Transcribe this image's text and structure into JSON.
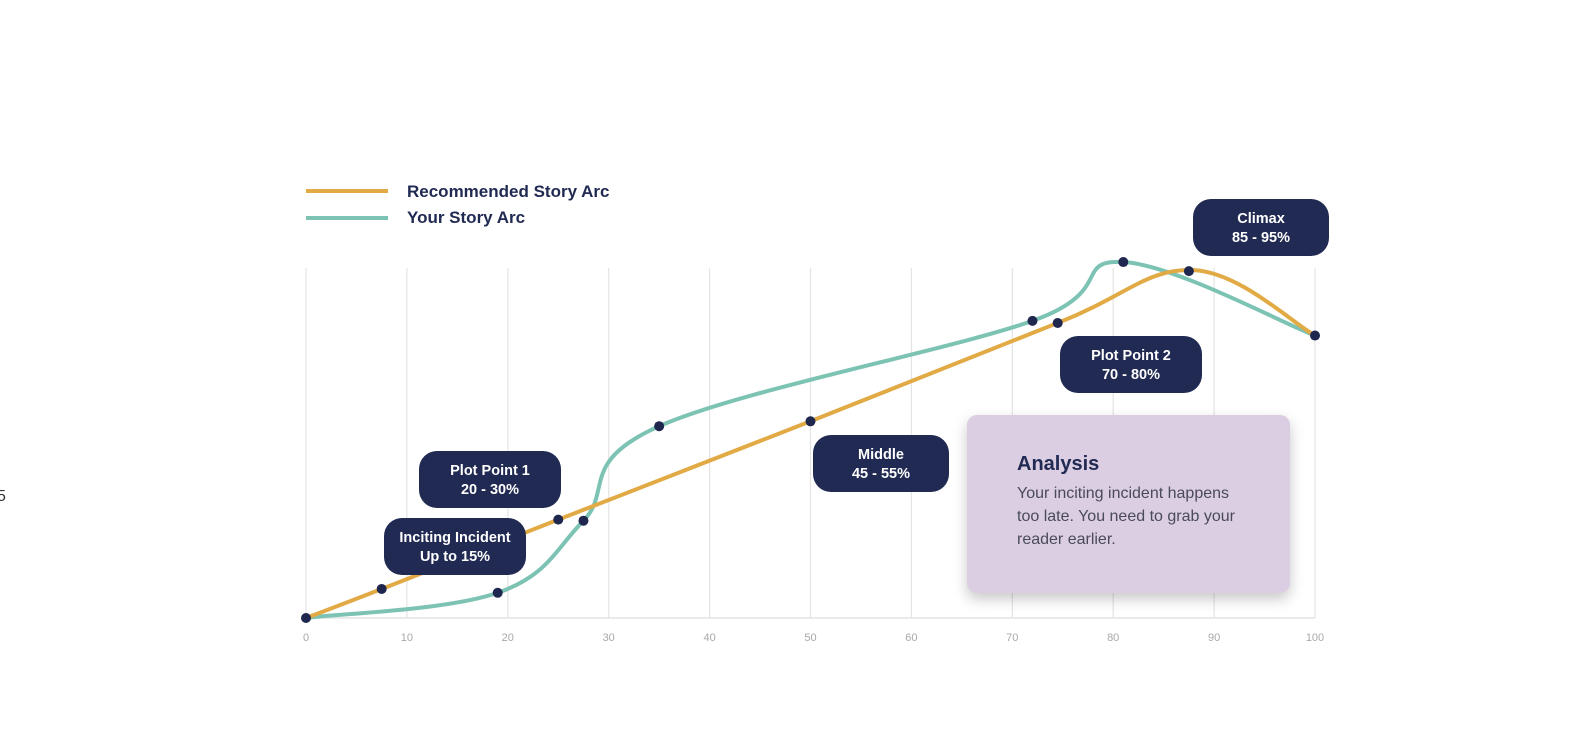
{
  "colors": {
    "recommended": "#e1aa45",
    "yours": "#7cc3b3",
    "marker": "#1f274f",
    "label_bg": "#212a52",
    "grid": "#e4e4e4",
    "tick_text": "#a8a8a8",
    "analysis_bg": "#dbcee3"
  },
  "legend": {
    "recommended_label": "Recommended Story Arc",
    "yours_label": "Your Story Arc"
  },
  "analysis": {
    "title": "Analysis",
    "body": "Your inciting incident happens too late. You need to grab your reader earlier."
  },
  "edge_glyph": "5",
  "chart_data": {
    "type": "line",
    "xlim": [
      0,
      100
    ],
    "ylim": [
      0,
      100
    ],
    "x_ticks": [
      "0",
      "10",
      "20",
      "30",
      "40",
      "50",
      "60",
      "70",
      "80",
      "90",
      "100"
    ],
    "grid": "vertical",
    "legend_position": "top-left",
    "series": [
      {
        "name": "Recommended Story Arc",
        "color": "#e1aa45",
        "points": [
          [
            0,
            0
          ],
          [
            7.5,
            8.3
          ],
          [
            25,
            28.1
          ],
          [
            50,
            56.2
          ],
          [
            74.5,
            84.3
          ],
          [
            88,
            99.4
          ],
          [
            100,
            80.7
          ]
        ],
        "markers": [
          [
            0,
            0
          ],
          [
            7.5,
            8.3
          ],
          [
            25,
            28.1
          ],
          [
            50,
            56.2
          ],
          [
            74.5,
            84.3
          ],
          [
            87.5,
            99.1
          ]
        ]
      },
      {
        "name": "Your Story Arc",
        "color": "#7cc3b3",
        "points": [
          [
            0,
            0
          ],
          [
            19,
            7.2
          ],
          [
            27.5,
            27.8
          ],
          [
            35,
            54.8
          ],
          [
            72,
            84.9
          ],
          [
            81,
            101.7
          ],
          [
            100,
            80.7
          ]
        ],
        "markers": [
          [
            19,
            7.2
          ],
          [
            27.5,
            27.8
          ],
          [
            35,
            54.8
          ],
          [
            72,
            84.9
          ],
          [
            81,
            101.7
          ],
          [
            100,
            80.7
          ]
        ]
      }
    ],
    "annotations": [
      {
        "line1": "Inciting Incident",
        "line2": "Up to 15%"
      },
      {
        "line1": "Plot Point 1",
        "line2": "20 - 30%"
      },
      {
        "line1": "Middle",
        "line2": "45 - 55%"
      },
      {
        "line1": "Plot Point 2",
        "line2": "70 - 80%"
      },
      {
        "line1": "Climax",
        "line2": "85 - 95%"
      }
    ]
  }
}
